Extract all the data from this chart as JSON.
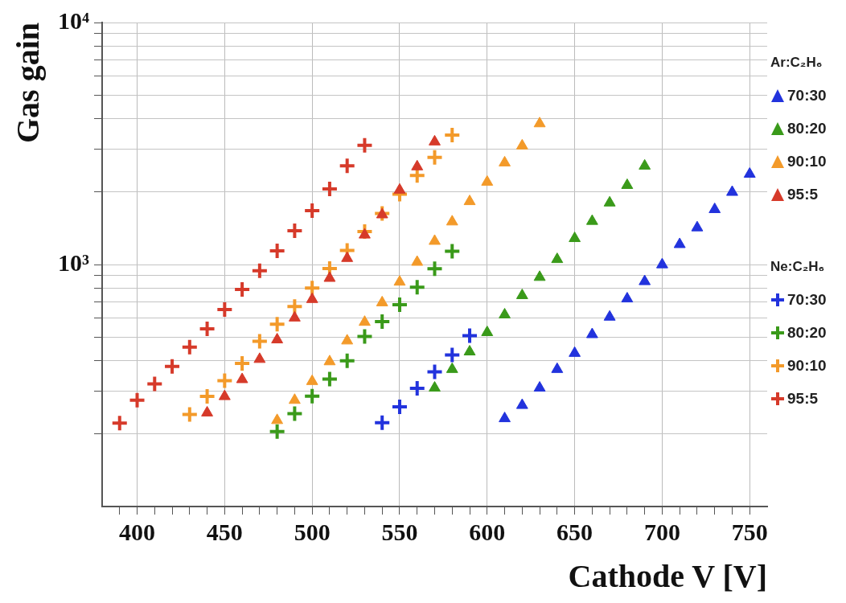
{
  "chart_data": {
    "type": "scatter",
    "xlabel": "Cathode V [V]",
    "ylabel": "Gas gain",
    "log": "y",
    "grid": true,
    "legend": "right",
    "legend_title": "Ar:C₂H₆",
    "annotations": [
      "Ne:C₂H₆"
    ],
    "xlim": [
      380,
      760
    ],
    "ylim": [
      100,
      10000
    ],
    "xticks": [
      {
        "value": 390,
        "label": null
      },
      400,
      {
        "value": 410,
        "label": null
      },
      {
        "value": 420,
        "label": null
      },
      {
        "value": 430,
        "label": null
      },
      {
        "value": 440,
        "label": null
      },
      450,
      {
        "value": 460,
        "label": null
      },
      {
        "value": 470,
        "label": null
      },
      {
        "value": 480,
        "label": null
      },
      {
        "value": 490,
        "label": null
      },
      500,
      {
        "value": 510,
        "label": null
      },
      {
        "value": 520,
        "label": null
      },
      {
        "value": 530,
        "label": null
      },
      {
        "value": 540,
        "label": null
      },
      550,
      {
        "value": 560,
        "label": null
      },
      {
        "value": 570,
        "label": null
      },
      {
        "value": 580,
        "label": null
      },
      {
        "value": 590,
        "label": null
      },
      600,
      {
        "value": 610,
        "label": null
      },
      {
        "value": 620,
        "label": null
      },
      {
        "value": 630,
        "label": null
      },
      {
        "value": 640,
        "label": null
      },
      650,
      {
        "value": 660,
        "label": null
      },
      {
        "value": 670,
        "label": null
      },
      {
        "value": 680,
        "label": null
      },
      {
        "value": 690,
        "label": null
      },
      700,
      {
        "value": 710,
        "label": null
      },
      {
        "value": 720,
        "label": null
      },
      {
        "value": 730,
        "label": null
      },
      {
        "value": 740,
        "label": null
      },
      750
    ],
    "yticks": [
      {
        "value": 200,
        "label": null
      },
      {
        "value": 300,
        "label": null
      },
      {
        "value": 400,
        "label": null
      },
      {
        "value": 500,
        "label": null
      },
      {
        "value": 600,
        "label": null
      },
      {
        "value": 700,
        "label": null
      },
      {
        "value": 800,
        "label": null
      },
      {
        "value": 900,
        "label": null
      },
      {
        "value": 1000,
        "label": "10³"
      },
      {
        "value": 2000,
        "label": null
      },
      {
        "value": 3000,
        "label": null
      },
      {
        "value": 4000,
        "label": null
      },
      {
        "value": 5000,
        "label": null
      },
      {
        "value": 6000,
        "label": null
      },
      {
        "value": 7000,
        "label": null
      },
      {
        "value": 8000,
        "label": null
      },
      {
        "value": 9000,
        "label": null
      },
      {
        "value": 10000,
        "label": "10⁴"
      }
    ],
    "series": [
      {
        "name": "70:30",
        "color": "#2233dd",
        "marker": "triangle",
        "x": [
          610,
          620,
          630,
          640,
          650,
          660,
          670,
          680,
          690,
          700,
          710,
          720,
          730,
          740,
          750
        ],
        "values": [
          231,
          262,
          309,
          369,
          430,
          514,
          607,
          722,
          851,
          999,
          1211,
          1420,
          1689,
          1990,
          2365
        ]
      },
      {
        "name": "80:20",
        "color": "#3a9a1a",
        "marker": "triangle",
        "x": [
          570,
          580,
          590,
          600,
          610,
          620,
          630,
          640,
          650,
          660,
          670,
          680,
          690
        ],
        "values": [
          309,
          369,
          436,
          524,
          620,
          745,
          886,
          1050,
          1282,
          1510,
          1799,
          2125,
          2555
        ]
      },
      {
        "name": "90:10",
        "color": "#f39a2a",
        "marker": "triangle",
        "x": [
          480,
          490,
          500,
          510,
          520,
          530,
          540,
          550,
          560,
          570,
          580,
          590,
          600,
          610,
          620,
          630
        ],
        "values": [
          227,
          275,
          329,
          397,
          484,
          578,
          696,
          847,
          1023,
          1249,
          1502,
          1822,
          2192,
          2634,
          3094,
          3821
        ]
      },
      {
        "name": "95:5",
        "color": "#d63a2a",
        "marker": "triangle",
        "x": [
          440,
          450,
          460,
          470,
          480,
          490,
          500,
          510,
          520,
          530,
          540,
          550,
          560,
          570
        ],
        "values": [
          244,
          285,
          335,
          406,
          489,
          602,
          718,
          878,
          1061,
          1326,
          1607,
          2032,
          2537,
          3215
        ]
      },
      {
        "name": "70:30",
        "color": "#2233dd",
        "marker": "cross",
        "x": [
          540,
          550,
          560,
          570,
          580,
          590
        ],
        "values": [
          222,
          258,
          308,
          360,
          423,
          508
        ]
      },
      {
        "name": "80:20",
        "color": "#3a9a1a",
        "marker": "cross",
        "x": [
          480,
          490,
          500,
          510,
          520,
          530,
          540,
          550,
          560,
          570,
          580
        ],
        "values": [
          204,
          242,
          286,
          336,
          400,
          504,
          581,
          682,
          805,
          960,
          1134
        ]
      },
      {
        "name": "90:10",
        "color": "#f39a2a",
        "marker": "cross",
        "x": [
          430,
          440,
          450,
          460,
          470,
          480,
          490,
          500,
          510,
          520,
          530,
          540,
          550,
          560,
          570,
          580
        ],
        "values": [
          240,
          285,
          331,
          390,
          482,
          567,
          670,
          799,
          963,
          1144,
          1368,
          1625,
          1952,
          2333,
          2771,
          3426
        ]
      },
      {
        "name": "95:5",
        "color": "#d63a2a",
        "marker": "cross",
        "x": [
          390,
          400,
          410,
          420,
          430,
          440,
          450,
          460,
          470,
          480,
          490,
          500,
          510,
          520,
          530
        ],
        "values": [
          221,
          275,
          321,
          379,
          456,
          542,
          652,
          789,
          943,
          1138,
          1378,
          1668,
          2052,
          2556,
          3110
        ]
      }
    ]
  }
}
